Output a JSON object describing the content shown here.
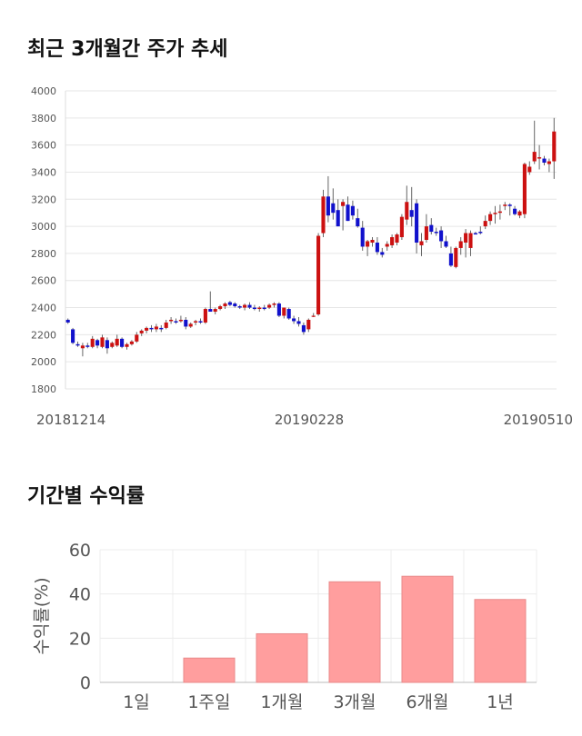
{
  "sections": {
    "price_title": "최근 3개월간 주가 추세",
    "return_title": "기간별 수익률"
  },
  "chart_data": [
    {
      "type": "candlestick",
      "title": "최근 3개월간 주가 추세",
      "ylim": [
        1800,
        4000
      ],
      "y_ticks": [
        1800,
        2000,
        2200,
        2400,
        2600,
        2800,
        3000,
        3200,
        3400,
        3600,
        3800,
        4000
      ],
      "x_tick_labels": [
        "20181214",
        "20190228",
        "20190510"
      ],
      "x_tick_index": [
        0,
        50,
        99
      ],
      "colors": {
        "up": "#cc1111",
        "down": "#1111cc",
        "wick": "#666666"
      },
      "grid": true,
      "candles": [
        [
          2310,
          2320,
          2280,
          2290
        ],
        [
          2240,
          2250,
          2130,
          2140
        ],
        [
          2130,
          2150,
          2110,
          2120
        ],
        [
          2100,
          2140,
          2040,
          2120
        ],
        [
          2120,
          2140,
          2100,
          2110
        ],
        [
          2110,
          2190,
          2100,
          2170
        ],
        [
          2160,
          2170,
          2100,
          2120
        ],
        [
          2110,
          2200,
          2100,
          2180
        ],
        [
          2160,
          2180,
          2060,
          2100
        ],
        [
          2110,
          2150,
          2100,
          2140
        ],
        [
          2120,
          2200,
          2110,
          2170
        ],
        [
          2170,
          2180,
          2100,
          2110
        ],
        [
          2110,
          2140,
          2090,
          2130
        ],
        [
          2130,
          2160,
          2120,
          2150
        ],
        [
          2150,
          2220,
          2140,
          2200
        ],
        [
          2210,
          2240,
          2190,
          2230
        ],
        [
          2230,
          2260,
          2210,
          2250
        ],
        [
          2250,
          2270,
          2220,
          2240
        ],
        [
          2240,
          2280,
          2220,
          2260
        ],
        [
          2250,
          2270,
          2220,
          2240
        ],
        [
          2250,
          2310,
          2240,
          2290
        ],
        [
          2300,
          2330,
          2280,
          2310
        ],
        [
          2300,
          2320,
          2280,
          2290
        ],
        [
          2300,
          2340,
          2290,
          2310
        ],
        [
          2310,
          2330,
          2240,
          2260
        ],
        [
          2260,
          2290,
          2250,
          2280
        ],
        [
          2290,
          2310,
          2270,
          2300
        ],
        [
          2300,
          2320,
          2280,
          2290
        ],
        [
          2290,
          2400,
          2280,
          2390
        ],
        [
          2390,
          2520,
          2370,
          2370
        ],
        [
          2370,
          2400,
          2350,
          2390
        ],
        [
          2390,
          2420,
          2380,
          2410
        ],
        [
          2410,
          2440,
          2390,
          2430
        ],
        [
          2440,
          2450,
          2410,
          2420
        ],
        [
          2430,
          2440,
          2400,
          2410
        ],
        [
          2410,
          2420,
          2390,
          2400
        ],
        [
          2400,
          2430,
          2380,
          2420
        ],
        [
          2420,
          2440,
          2390,
          2400
        ],
        [
          2400,
          2420,
          2380,
          2390
        ],
        [
          2390,
          2410,
          2370,
          2400
        ],
        [
          2400,
          2420,
          2380,
          2390
        ],
        [
          2400,
          2430,
          2390,
          2420
        ],
        [
          2420,
          2440,
          2400,
          2430
        ],
        [
          2430,
          2440,
          2330,
          2340
        ],
        [
          2340,
          2400,
          2320,
          2400
        ],
        [
          2390,
          2400,
          2310,
          2320
        ],
        [
          2320,
          2340,
          2280,
          2300
        ],
        [
          2300,
          2330,
          2260,
          2280
        ],
        [
          2270,
          2290,
          2200,
          2220
        ],
        [
          2240,
          2320,
          2220,
          2310
        ],
        [
          2340,
          2360,
          2330,
          2340
        ],
        [
          2350,
          2950,
          2340,
          2930
        ],
        [
          2950,
          3270,
          2920,
          3220
        ],
        [
          3220,
          3370,
          3030,
          3080
        ],
        [
          3170,
          3280,
          3050,
          3100
        ],
        [
          3120,
          3200,
          3000,
          3000
        ],
        [
          3150,
          3200,
          2970,
          3180
        ],
        [
          3160,
          3220,
          3040,
          3040
        ],
        [
          3150,
          3190,
          3050,
          3080
        ],
        [
          3060,
          3130,
          2990,
          3000
        ],
        [
          2990,
          3040,
          2820,
          2850
        ],
        [
          2850,
          2900,
          2780,
          2890
        ],
        [
          2880,
          2920,
          2850,
          2900
        ],
        [
          2880,
          2920,
          2790,
          2810
        ],
        [
          2810,
          2840,
          2770,
          2790
        ],
        [
          2850,
          2890,
          2820,
          2870
        ],
        [
          2860,
          2940,
          2840,
          2920
        ],
        [
          2880,
          2950,
          2860,
          2940
        ],
        [
          2920,
          3090,
          2900,
          3070
        ],
        [
          3050,
          3300,
          3010,
          3180
        ],
        [
          3120,
          3290,
          3000,
          3070
        ],
        [
          3170,
          3200,
          2800,
          2880
        ],
        [
          2860,
          2950,
          2780,
          2890
        ],
        [
          2900,
          3090,
          2880,
          3000
        ],
        [
          3010,
          3060,
          2940,
          2960
        ],
        [
          2960,
          2990,
          2930,
          2950
        ],
        [
          2970,
          3000,
          2840,
          2890
        ],
        [
          2890,
          2930,
          2840,
          2850
        ],
        [
          2800,
          2850,
          2700,
          2710
        ],
        [
          2700,
          2850,
          2690,
          2840
        ],
        [
          2840,
          2920,
          2790,
          2890
        ],
        [
          2880,
          2980,
          2770,
          2950
        ],
        [
          2840,
          2970,
          2780,
          2950
        ],
        [
          2950,
          2960,
          2940,
          2940
        ],
        [
          2960,
          3000,
          2940,
          2950
        ],
        [
          3000,
          3080,
          2980,
          3040
        ],
        [
          3040,
          3110,
          3010,
          3090
        ],
        [
          3090,
          3150,
          3020,
          3100
        ],
        [
          3100,
          3160,
          3050,
          3110
        ],
        [
          3150,
          3180,
          3120,
          3160
        ],
        [
          3160,
          3170,
          3080,
          3150
        ],
        [
          3130,
          3150,
          3080,
          3090
        ],
        [
          3080,
          3120,
          3060,
          3110
        ],
        [
          3090,
          3470,
          3060,
          3460
        ],
        [
          3400,
          3480,
          3380,
          3440
        ],
        [
          3480,
          3780,
          3460,
          3550
        ],
        [
          3500,
          3600,
          3420,
          3510
        ],
        [
          3500,
          3520,
          3450,
          3470
        ],
        [
          3460,
          3500,
          3400,
          3480
        ],
        [
          3480,
          3800,
          3350,
          3700
        ]
      ]
    },
    {
      "type": "bar",
      "title": "기간별 수익률",
      "ylabel": "수익률(%)",
      "categories": [
        "1일",
        "1주일",
        "1개월",
        "3개월",
        "6개월",
        "1년"
      ],
      "values": [
        0,
        11,
        22,
        45.5,
        48,
        37.5
      ],
      "ylim": [
        0,
        60
      ],
      "y_ticks": [
        0,
        20,
        40,
        60
      ],
      "colors": {
        "bar": "#ff9e9e",
        "bar_stroke": "#e88a8a"
      },
      "grid": true
    }
  ]
}
